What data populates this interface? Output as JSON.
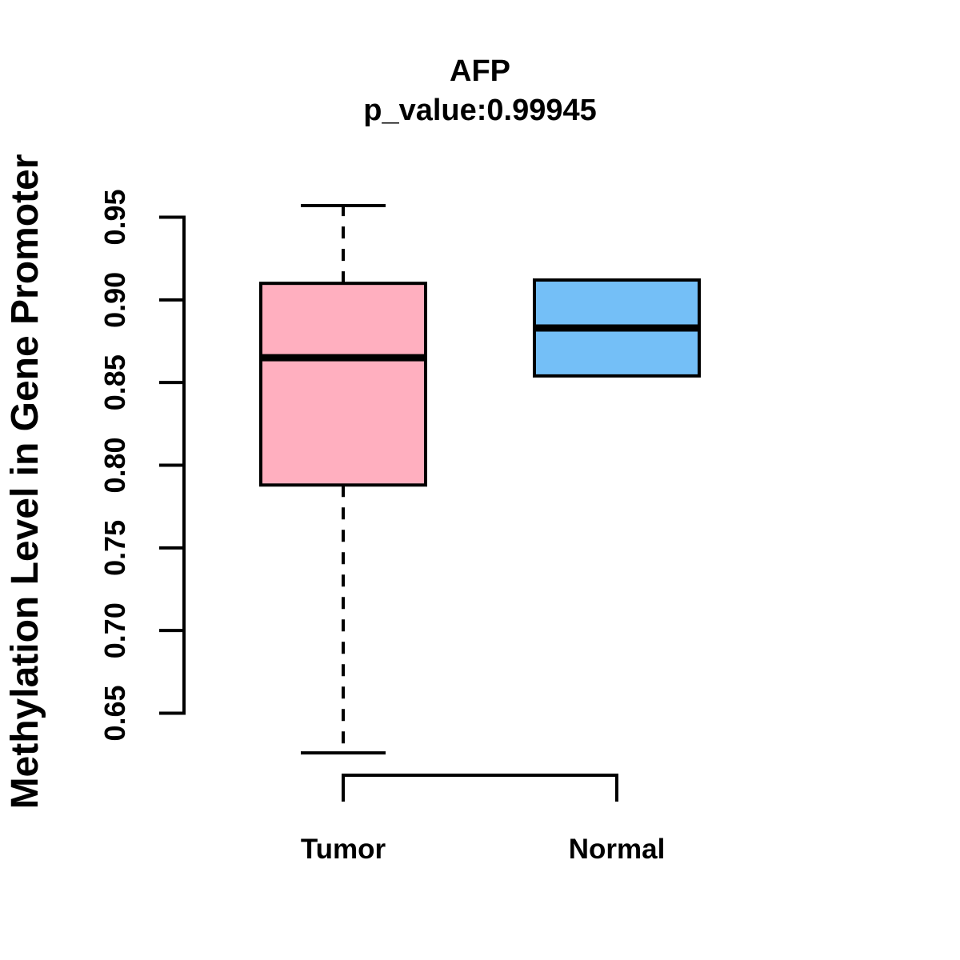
{
  "figure": {
    "background_color": "#FFFFFF",
    "line_color": "#000000"
  },
  "chart_data": {
    "type": "boxplot",
    "title": "AFP",
    "subtitle": "p_value:0.99945",
    "p_value": 0.99945,
    "ylabel": "Methylation Level in Gene Promoter",
    "xlabel": "",
    "categories": [
      "Tumor",
      "Normal"
    ],
    "y_axis": {
      "ticks": [
        0.95,
        0.9,
        0.85,
        0.8,
        0.75,
        0.7,
        0.65
      ],
      "tick_labels": [
        "0.95",
        "0.90",
        "0.85",
        "0.80",
        "0.75",
        "0.70",
        "0.65"
      ],
      "range_shown": [
        0.65,
        0.95
      ]
    },
    "grid": false,
    "legend": "none",
    "line_color": "#000000",
    "series": [
      {
        "name": "Tumor",
        "fill_color": "#FFAFBF",
        "whisker_low": 0.626,
        "q1": 0.788,
        "median": 0.865,
        "q3": 0.91,
        "whisker_high": 0.957,
        "has_whiskers": true
      },
      {
        "name": "Normal",
        "fill_color": "#74BFF7",
        "q1": 0.854,
        "median": 0.883,
        "q3": 0.912,
        "has_whiskers": false
      }
    ]
  }
}
